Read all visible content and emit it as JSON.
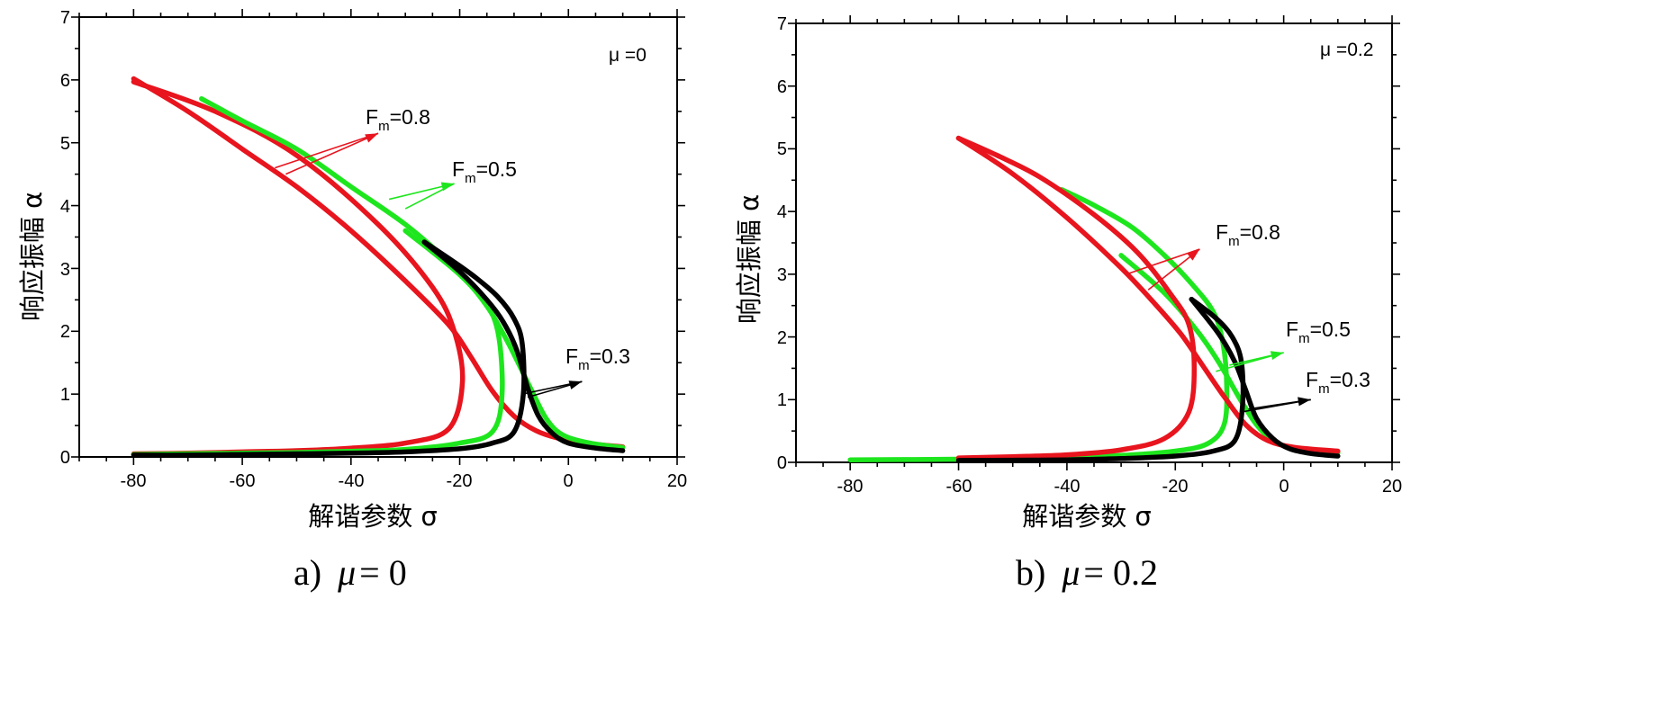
{
  "chart_data": [
    {
      "type": "line",
      "panel_id": "a",
      "xlabel": "解谐参数 σ",
      "ylabel": "响应振幅 α",
      "xlim": [
        -90,
        20
      ],
      "ylim": [
        0,
        7
      ],
      "xticks": [
        "-80",
        "-60",
        "-40",
        "-20",
        "0",
        "20"
      ],
      "yticks": [
        "0",
        "1",
        "2",
        "3",
        "4",
        "5",
        "6",
        "7"
      ],
      "inset_label": "μ =0",
      "caption": {
        "prefix": "a)",
        "symbol": "μ",
        "rest": "= 0"
      },
      "annotations": [
        {
          "base": "F",
          "sub": "m",
          "value": "=0.8",
          "color": "#e8141e"
        },
        {
          "base": "F",
          "sub": "m",
          "value": "=0.5",
          "color": "#1ee61e"
        },
        {
          "base": "F",
          "sub": "m",
          "value": "=0.3",
          "color": "#000000"
        }
      ],
      "series": [
        {
          "color": "#e8141e",
          "x": [
            -80,
            -70,
            -60,
            -50,
            -40,
            -30,
            -22,
            -19.5,
            -21,
            -25,
            -35,
            -50,
            -65,
            -80
          ],
          "y": [
            0.05,
            0.06,
            0.08,
            0.1,
            0.14,
            0.22,
            0.45,
            1.2,
            2.0,
            2.7,
            3.7,
            4.8,
            5.5,
            5.97
          ]
        },
        {
          "color": "#e8141e",
          "x": [
            -80,
            -70,
            -60,
            -50,
            -40,
            -30,
            -22,
            -18,
            -14,
            -10,
            -6,
            -2,
            3,
            10
          ],
          "y": [
            6.02,
            5.5,
            4.9,
            4.3,
            3.6,
            2.8,
            2.1,
            1.6,
            1.05,
            0.65,
            0.42,
            0.3,
            0.22,
            0.16
          ]
        },
        {
          "color": "#1ee61e",
          "x": [
            -80,
            -70,
            -60,
            -50,
            -40,
            -30,
            -20,
            -14,
            -12.2,
            -13,
            -16,
            -22,
            -30,
            -40,
            -50,
            -60,
            -67.5
          ],
          "y": [
            0.04,
            0.05,
            0.06,
            0.07,
            0.09,
            0.12,
            0.22,
            0.4,
            1.0,
            2.0,
            2.55,
            3.1,
            3.7,
            4.3,
            4.9,
            5.35,
            5.7
          ]
        },
        {
          "color": "#1ee61e",
          "x": [
            -30,
            -20,
            -15,
            -11,
            -7,
            -4,
            -1,
            4,
            10
          ],
          "y": [
            3.6,
            2.9,
            2.4,
            1.8,
            1.1,
            0.6,
            0.35,
            0.22,
            0.15
          ]
        },
        {
          "color": "#000000",
          "x": [
            -80,
            -70,
            -60,
            -50,
            -40,
            -30,
            -20,
            -14,
            -10,
            -8.3,
            -8.5,
            -10,
            -13,
            -17,
            -21,
            -26.5
          ],
          "y": [
            0.03,
            0.03,
            0.04,
            0.05,
            0.06,
            0.08,
            0.13,
            0.22,
            0.4,
            1.0,
            1.8,
            2.2,
            2.55,
            2.85,
            3.1,
            3.42
          ]
        },
        {
          "color": "#000000",
          "x": [
            -26.5,
            -20,
            -15,
            -12,
            -9.5,
            -7.5,
            -5.5,
            -3,
            0,
            5,
            10
          ],
          "y": [
            3.42,
            2.95,
            2.5,
            2.15,
            1.7,
            1.1,
            0.65,
            0.38,
            0.22,
            0.14,
            0.1
          ]
        }
      ]
    },
    {
      "type": "line",
      "panel_id": "b",
      "xlabel": "解谐参数 σ",
      "ylabel": "响应振幅 α",
      "xlim": [
        -90,
        20
      ],
      "ylim": [
        0,
        7
      ],
      "xticks": [
        "-80",
        "-60",
        "-40",
        "-20",
        "0",
        "20"
      ],
      "yticks": [
        "0",
        "1",
        "2",
        "3",
        "4",
        "5",
        "6",
        "7"
      ],
      "inset_label": "μ =0.2",
      "caption": {
        "prefix": "b)",
        "symbol": "μ",
        "rest": "= 0.2"
      },
      "annotations": [
        {
          "base": "F",
          "sub": "m",
          "value": "=0.8",
          "color": "#e8141e"
        },
        {
          "base": "F",
          "sub": "m",
          "value": "=0.5",
          "color": "#1ee61e"
        },
        {
          "base": "F",
          "sub": "m",
          "value": "=0.3",
          "color": "#000000"
        }
      ],
      "series": [
        {
          "color": "#1ee61e",
          "x": [
            -80,
            -70,
            -60,
            -50,
            -40,
            -30,
            -20,
            -14,
            -11,
            -10.5,
            -11.2,
            -13,
            -17,
            -22,
            -28,
            -35,
            -41
          ],
          "y": [
            0.04,
            0.045,
            0.05,
            0.06,
            0.08,
            0.11,
            0.18,
            0.3,
            0.6,
            1.2,
            1.9,
            2.4,
            2.85,
            3.3,
            3.75,
            4.1,
            4.35
          ]
        },
        {
          "color": "#1ee61e",
          "x": [
            -30,
            -22,
            -16,
            -12,
            -8,
            -5,
            -2,
            2,
            10
          ],
          "y": [
            3.3,
            2.7,
            2.1,
            1.6,
            1.0,
            0.6,
            0.35,
            0.22,
            0.15
          ]
        },
        {
          "color": "#e8141e",
          "x": [
            -60,
            -50,
            -40,
            -30,
            -22,
            -17.5,
            -16.5,
            -17.5,
            -21,
            -27,
            -35,
            -45,
            -53,
            -60
          ],
          "y": [
            0.07,
            0.09,
            0.12,
            0.2,
            0.38,
            0.8,
            1.5,
            2.2,
            2.7,
            3.35,
            3.95,
            4.55,
            4.9,
            5.17
          ]
        },
        {
          "color": "#e8141e",
          "x": [
            -60,
            -50,
            -40,
            -30,
            -24,
            -19,
            -15,
            -11,
            -7,
            -3,
            2,
            10
          ],
          "y": [
            5.17,
            4.6,
            3.9,
            3.1,
            2.55,
            2.05,
            1.55,
            1.05,
            0.6,
            0.35,
            0.24,
            0.18
          ]
        },
        {
          "color": "#000000",
          "x": [
            -60,
            -50,
            -40,
            -30,
            -20,
            -13,
            -9,
            -7.6,
            -7.8,
            -9.5,
            -12.5,
            -17
          ],
          "y": [
            0.03,
            0.035,
            0.04,
            0.06,
            0.1,
            0.18,
            0.35,
            0.9,
            1.6,
            2.0,
            2.3,
            2.6
          ]
        },
        {
          "color": "#000000",
          "x": [
            -17,
            -12,
            -9,
            -7,
            -5,
            -2,
            1,
            5,
            10
          ],
          "y": [
            2.6,
            2.05,
            1.6,
            1.15,
            0.7,
            0.38,
            0.22,
            0.14,
            0.1
          ]
        }
      ]
    }
  ]
}
